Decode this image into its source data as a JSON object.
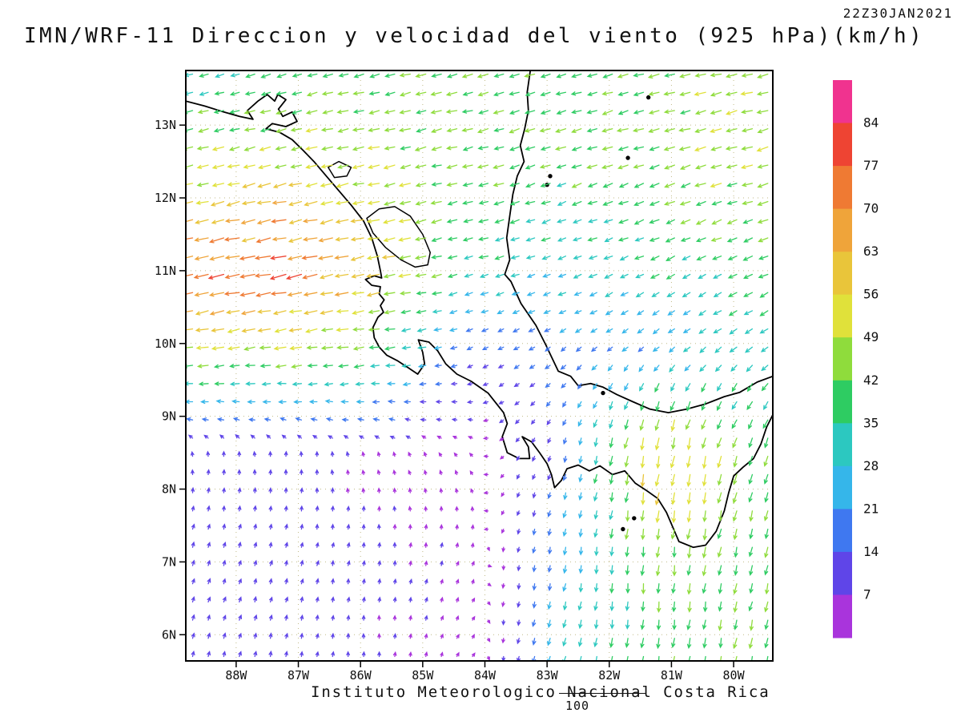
{
  "header": {
    "timestamp": "22Z30JAN2021",
    "title": "IMN/WRF-11 Direccion y velocidad del viento (925 hPa)(km/h)"
  },
  "footer": {
    "credit": "Instituto Meteorologico Nacional Costa Rica",
    "vector_key_label": "100"
  },
  "chart_data": {
    "type": "vector_field_map",
    "title": "IMN/WRF-11 Direccion y velocidad del viento (925 hPa)(km/h)",
    "valid_time": "22Z30JAN2021",
    "units": "km/h",
    "level": "925 hPa",
    "reference_speed": 100,
    "arrow_spacing_deg": 0.25,
    "extent": {
      "west_lon_w": 88.81,
      "east_lon_w": 79.37,
      "north_lat": 13.75,
      "south_lat": 5.64
    },
    "lat_ticks": [
      {
        "v": 13,
        "label": "13N"
      },
      {
        "v": 12,
        "label": "12N"
      },
      {
        "v": 11,
        "label": "11N"
      },
      {
        "v": 10,
        "label": "10N"
      },
      {
        "v": 9,
        "label": "9N"
      },
      {
        "v": 8,
        "label": "8N"
      },
      {
        "v": 7,
        "label": "7N"
      },
      {
        "v": 6,
        "label": "6N"
      }
    ],
    "lon_ticks": [
      {
        "v": 88,
        "label": "88W"
      },
      {
        "v": 87,
        "label": "87W"
      },
      {
        "v": 86,
        "label": "86W"
      },
      {
        "v": 85,
        "label": "85W"
      },
      {
        "v": 84,
        "label": "84W"
      },
      {
        "v": 83,
        "label": "83W"
      },
      {
        "v": 82,
        "label": "82W"
      },
      {
        "v": 81,
        "label": "81W"
      },
      {
        "v": 80,
        "label": "80W"
      }
    ],
    "colorbar": {
      "levels": [
        7,
        14,
        21,
        28,
        35,
        42,
        49,
        56,
        63,
        70,
        77,
        84
      ],
      "colors": [
        "#a934dc",
        "#5f45e8",
        "#3f78f0",
        "#35b6ea",
        "#2cc8c0",
        "#2ecc62",
        "#8fdc3c",
        "#e0e13a",
        "#e9c53a",
        "#efa43a",
        "#ef7a33",
        "#ee4433",
        "#f0338f"
      ]
    },
    "wind_grid": {
      "lons_w": [
        88.75,
        87.25,
        85.75,
        84.25,
        82.75,
        81.25,
        79.75
      ],
      "lats_n": [
        5.5,
        7.0,
        8.5,
        10.0,
        11.0,
        12.5,
        13.75
      ],
      "u": [
        [
          3,
          2,
          0,
          3,
          -8,
          -5,
          -8
        ],
        [
          4,
          3,
          1,
          2,
          -5,
          -3,
          -10
        ],
        [
          -1,
          0,
          -2,
          -3,
          -5,
          -10,
          -12
        ],
        [
          -52,
          -50,
          -45,
          -14,
          -14,
          -18,
          -25
        ],
        [
          -72,
          -76,
          -58,
          -32,
          -28,
          -30,
          -34
        ],
        [
          -46,
          -50,
          -46,
          -42,
          -38,
          -42,
          -46
        ],
        [
          -32,
          -36,
          -40,
          -42,
          -40,
          -44,
          -46
        ]
      ],
      "v": [
        [
          12,
          10,
          7,
          5,
          -30,
          -38,
          -40
        ],
        [
          11,
          10,
          8,
          6,
          -25,
          -42,
          -40
        ],
        [
          8,
          8,
          6,
          4,
          -15,
          -60,
          -42
        ],
        [
          -10,
          -8,
          -6,
          -6,
          -10,
          -14,
          -18
        ],
        [
          -15,
          -16,
          -12,
          -8,
          -10,
          -14,
          -15
        ],
        [
          -10,
          -12,
          -10,
          -10,
          -14,
          -14,
          -14
        ],
        [
          -8,
          -10,
          -10,
          -10,
          -12,
          -10,
          -10
        ]
      ]
    }
  },
  "map": {
    "coastlines": [
      [
        [
          88.81,
          13.33
        ],
        [
          88.5,
          13.26
        ],
        [
          88.2,
          13.18
        ],
        [
          87.95,
          13.12
        ],
        [
          87.73,
          13.08
        ],
        [
          87.82,
          13.2
        ],
        [
          87.65,
          13.33
        ],
        [
          87.5,
          13.42
        ],
        [
          87.38,
          13.33
        ],
        [
          87.33,
          13.42
        ],
        [
          87.2,
          13.35
        ],
        [
          87.32,
          13.22
        ],
        [
          87.25,
          13.12
        ],
        [
          87.1,
          13.18
        ],
        [
          87.02,
          13.05
        ],
        [
          87.2,
          12.98
        ],
        [
          87.42,
          13.02
        ],
        [
          87.52,
          12.95
        ],
        [
          87.3,
          12.9
        ],
        [
          87.1,
          12.8
        ],
        [
          86.92,
          12.65
        ],
        [
          86.75,
          12.5
        ],
        [
          86.55,
          12.3
        ],
        [
          86.35,
          12.1
        ],
        [
          86.15,
          11.9
        ],
        [
          85.95,
          11.68
        ],
        [
          85.82,
          11.45
        ],
        [
          85.73,
          11.2
        ],
        [
          85.68,
          11.0
        ],
        [
          85.66,
          10.9
        ],
        [
          85.78,
          10.93
        ],
        [
          85.92,
          10.88
        ],
        [
          85.82,
          10.8
        ],
        [
          85.68,
          10.78
        ],
        [
          85.7,
          10.68
        ],
        [
          85.62,
          10.6
        ],
        [
          85.68,
          10.52
        ],
        [
          85.63,
          10.43
        ],
        [
          85.72,
          10.36
        ],
        [
          85.8,
          10.22
        ],
        [
          85.78,
          10.08
        ],
        [
          85.7,
          9.95
        ],
        [
          85.58,
          9.84
        ],
        [
          85.4,
          9.76
        ],
        [
          85.22,
          9.66
        ],
        [
          85.08,
          9.58
        ],
        [
          84.97,
          9.72
        ],
        [
          85.0,
          9.88
        ],
        [
          85.07,
          10.05
        ],
        [
          84.9,
          10.02
        ],
        [
          84.76,
          9.9
        ],
        [
          84.63,
          9.72
        ],
        [
          84.45,
          9.58
        ],
        [
          84.22,
          9.48
        ],
        [
          83.95,
          9.32
        ],
        [
          83.7,
          9.05
        ],
        [
          83.64,
          8.9
        ],
        [
          83.72,
          8.72
        ],
        [
          83.64,
          8.5
        ],
        [
          83.45,
          8.42
        ],
        [
          83.28,
          8.42
        ],
        [
          83.3,
          8.58
        ],
        [
          83.4,
          8.72
        ],
        [
          83.25,
          8.65
        ],
        [
          83.12,
          8.5
        ],
        [
          83.0,
          8.35
        ],
        [
          82.93,
          8.2
        ],
        [
          82.88,
          8.02
        ],
        [
          82.77,
          8.12
        ],
        [
          82.68,
          8.28
        ],
        [
          82.5,
          8.33
        ],
        [
          82.32,
          8.25
        ],
        [
          82.15,
          8.32
        ],
        [
          81.95,
          8.2
        ],
        [
          81.75,
          8.25
        ],
        [
          81.58,
          8.08
        ],
        [
          81.4,
          7.98
        ],
        [
          81.22,
          7.87
        ],
        [
          81.08,
          7.68
        ],
        [
          80.98,
          7.48
        ],
        [
          80.88,
          7.28
        ],
        [
          80.65,
          7.2
        ],
        [
          80.45,
          7.23
        ],
        [
          80.28,
          7.42
        ],
        [
          80.15,
          7.7
        ],
        [
          80.08,
          7.95
        ],
        [
          80.0,
          8.18
        ],
        [
          79.85,
          8.3
        ],
        [
          79.68,
          8.42
        ],
        [
          79.56,
          8.62
        ],
        [
          79.47,
          8.85
        ],
        [
          79.37,
          9.02
        ]
      ],
      [
        [
          79.37,
          9.55
        ],
        [
          79.62,
          9.47
        ],
        [
          79.9,
          9.33
        ],
        [
          80.15,
          9.27
        ],
        [
          80.45,
          9.17
        ],
        [
          80.75,
          9.1
        ],
        [
          81.05,
          9.05
        ],
        [
          81.35,
          9.1
        ],
        [
          81.62,
          9.2
        ],
        [
          81.88,
          9.3
        ],
        [
          82.1,
          9.4
        ],
        [
          82.3,
          9.45
        ],
        [
          82.5,
          9.42
        ],
        [
          82.62,
          9.55
        ],
        [
          82.82,
          9.62
        ],
        [
          83.02,
          9.98
        ],
        [
          83.18,
          10.25
        ],
        [
          83.42,
          10.55
        ],
        [
          83.58,
          10.85
        ],
        [
          83.68,
          10.95
        ],
        [
          83.6,
          11.15
        ],
        [
          83.65,
          11.45
        ],
        [
          83.6,
          11.75
        ],
        [
          83.55,
          12.05
        ],
        [
          83.48,
          12.3
        ],
        [
          83.37,
          12.5
        ],
        [
          83.43,
          12.72
        ],
        [
          83.36,
          12.95
        ],
        [
          83.3,
          13.2
        ],
        [
          83.32,
          13.45
        ],
        [
          83.27,
          13.75
        ]
      ]
    ],
    "lakes": [
      [
        [
          85.9,
          11.72
        ],
        [
          85.7,
          11.85
        ],
        [
          85.45,
          11.88
        ],
        [
          85.2,
          11.75
        ],
        [
          85.0,
          11.5
        ],
        [
          84.88,
          11.25
        ],
        [
          84.92,
          11.08
        ],
        [
          85.12,
          11.05
        ],
        [
          85.35,
          11.15
        ],
        [
          85.6,
          11.32
        ],
        [
          85.8,
          11.52
        ],
        [
          85.9,
          11.72
        ]
      ],
      [
        [
          86.52,
          12.42
        ],
        [
          86.35,
          12.5
        ],
        [
          86.15,
          12.42
        ],
        [
          86.22,
          12.3
        ],
        [
          86.42,
          12.28
        ],
        [
          86.52,
          12.42
        ]
      ]
    ],
    "islands": [
      [
        83.0,
        12.18
      ],
      [
        82.95,
        12.3
      ],
      [
        81.7,
        12.55
      ],
      [
        81.37,
        13.38
      ],
      [
        82.1,
        9.32
      ],
      [
        81.78,
        7.45
      ],
      [
        81.6,
        7.6
      ]
    ]
  }
}
